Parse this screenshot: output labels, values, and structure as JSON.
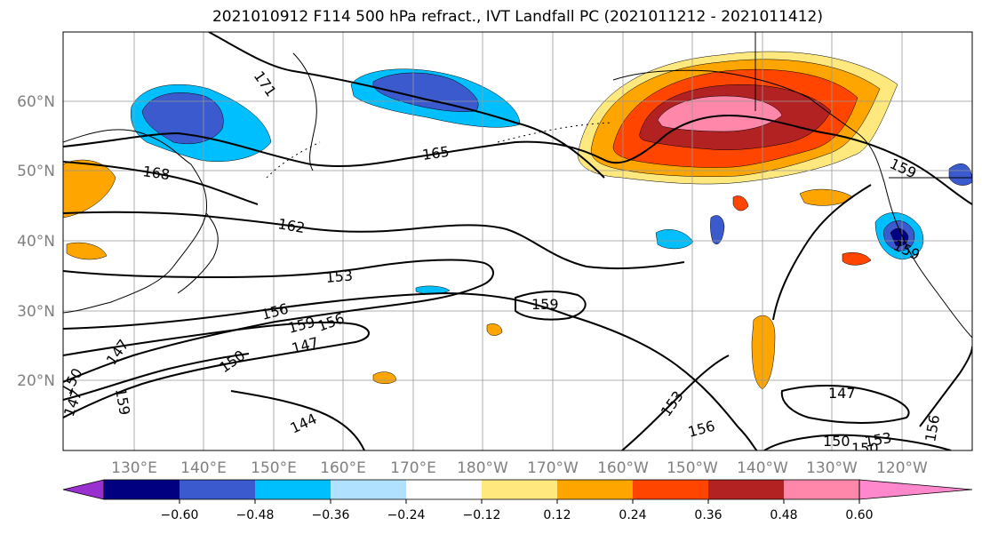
{
  "title": "2021010912 F114 500 hPa refract., IVT Landfall PC (2021011212 - 2021011412)",
  "map": {
    "lon_labels": [
      "130°E",
      "140°E",
      "150°E",
      "160°E",
      "170°E",
      "180°W",
      "170°W",
      "160°W",
      "150°W",
      "140°W",
      "130°W",
      "120°W"
    ],
    "lat_labels": [
      "60°N",
      "50°N",
      "40°N",
      "30°N",
      "20°N"
    ],
    "contour_labels": [
      "171",
      "165",
      "168",
      "162",
      "159",
      "153",
      "159",
      "156",
      "159",
      "156",
      "147",
      "150",
      "147",
      "150",
      "159",
      "144",
      "153",
      "156",
      "147",
      "150",
      "153",
      "156",
      "159",
      "147",
      "150"
    ]
  },
  "colorbar": {
    "ticks": [
      "−0.60",
      "−0.48",
      "−0.36",
      "−0.24",
      "−0.12",
      "0.12",
      "0.24",
      "0.36",
      "0.48",
      "0.60"
    ],
    "colors": {
      "under": "#9b30d0",
      "bins": [
        "#000080",
        "#3a5acd",
        "#00bfff",
        "#b0e2ff",
        "#ffffff",
        "#ffe97f",
        "#ffa500",
        "#ff4500",
        "#b22222",
        "#ff88aa"
      ],
      "over": "#ff88cc"
    }
  },
  "colors": {
    "neg_dark": "#000080",
    "neg_mid": "#3a5acd",
    "neg_light": "#00bfff",
    "neg_pale": "#b0e2ff",
    "pos_pale": "#ffe97f",
    "pos_mid": "#ffa500",
    "pos_strong": "#ff4500",
    "pos_dark": "#b22222",
    "pos_max": "#ff88aa"
  }
}
